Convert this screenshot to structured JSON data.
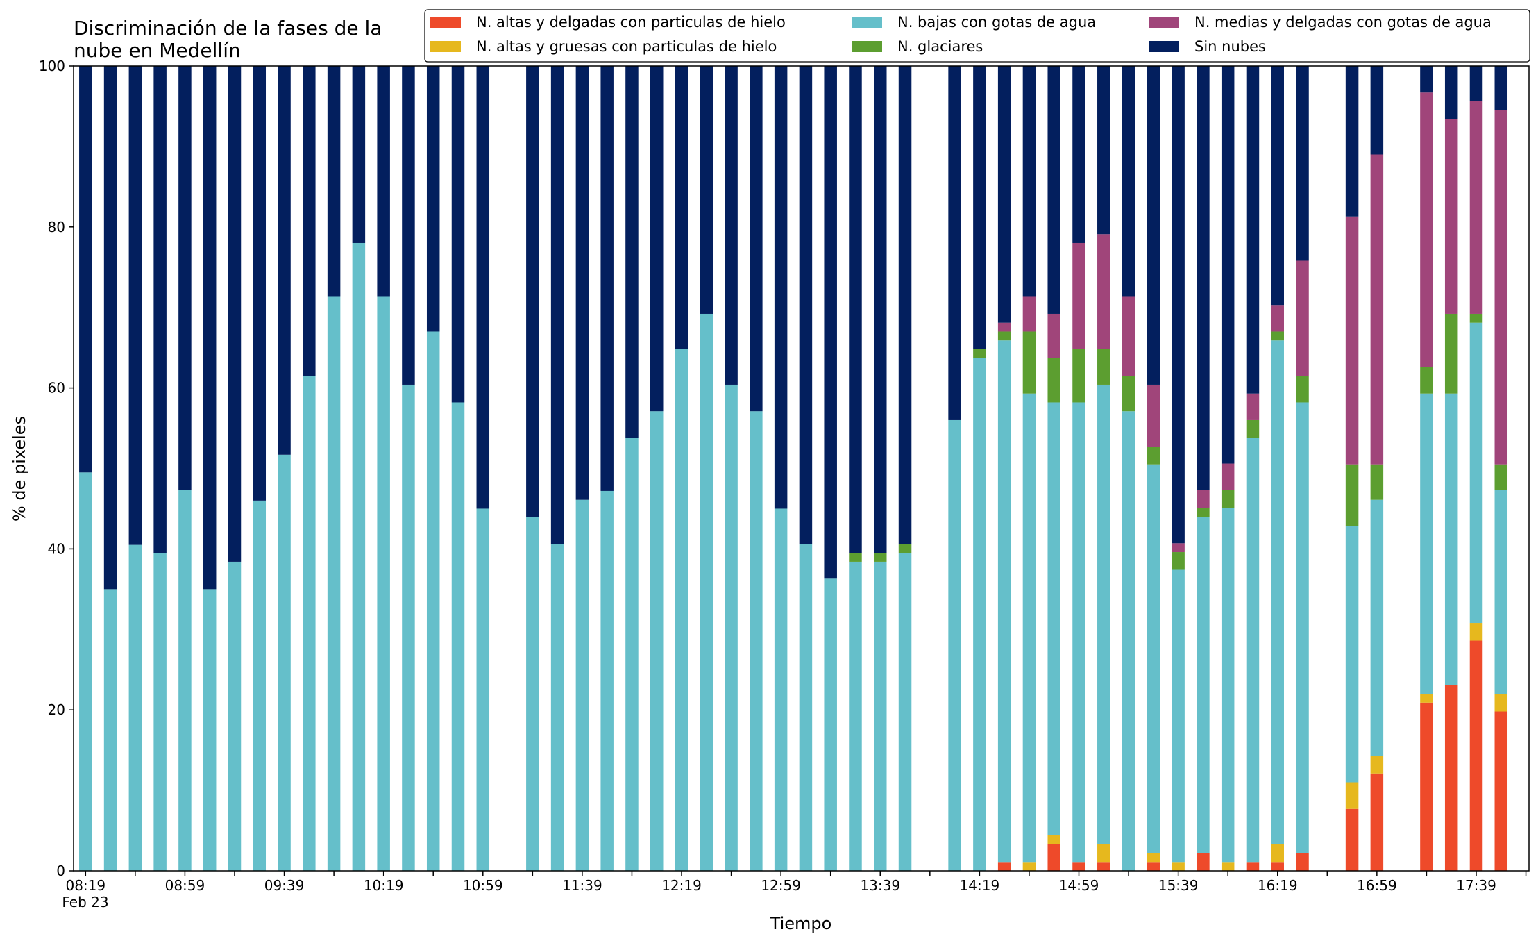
{
  "chart_data": {
    "type": "stacked_bar",
    "title": "Discriminación de la fases de la\nnube en Medellín",
    "x_label": "Tiempo",
    "x_date_label": "Feb 23",
    "y_label": "% de pixeles",
    "ylim": [
      0,
      100
    ],
    "yticks": [
      0,
      20,
      40,
      60,
      80,
      100
    ],
    "categories": [
      "08:19",
      null,
      null,
      null,
      "08:59",
      null,
      null,
      null,
      "09:39",
      null,
      null,
      null,
      "10:19",
      null,
      null,
      null,
      "10:59",
      null,
      null,
      null,
      "11:39",
      null,
      null,
      null,
      "12:19",
      null,
      null,
      null,
      "12:59",
      null,
      null,
      null,
      "13:39",
      null,
      null,
      null,
      "14:19",
      null,
      null,
      null,
      "14:59",
      null,
      null,
      null,
      "15:39",
      null,
      null,
      null,
      "16:19",
      null,
      null,
      null,
      "16:59",
      null,
      null,
      null,
      "17:39",
      null,
      null
    ],
    "legend": "upper right",
    "series": [
      {
        "name": "N. altas y delgadas con particulas de hielo",
        "color": "#ee4a2a",
        "values": [
          0,
          0,
          0,
          0,
          0,
          0,
          0,
          0,
          0,
          0,
          0,
          0,
          0,
          0,
          0,
          0,
          0,
          null,
          0,
          0,
          0,
          0,
          0,
          0,
          0,
          0,
          0,
          0,
          0,
          0,
          0,
          0,
          0,
          0,
          null,
          0,
          0,
          1.1,
          0,
          3.3,
          1.1,
          1.1,
          0,
          1.1,
          0,
          2.2,
          0,
          1.1,
          1.1,
          2.2,
          null,
          7.7,
          12.1,
          null,
          20.9,
          23.1,
          28.6,
          19.8,
          null
        ]
      },
      {
        "name": "N. altas y gruesas con particulas de hielo",
        "color": "#e6b81e",
        "values": [
          0,
          0,
          0,
          0,
          0,
          0,
          0,
          0,
          0,
          0,
          0,
          0,
          0,
          0,
          0,
          0,
          0,
          null,
          0,
          0,
          0,
          0,
          0,
          0,
          0,
          0,
          0,
          0,
          0,
          0,
          0,
          0,
          0,
          0,
          null,
          0,
          0,
          0,
          1.1,
          1.1,
          0,
          2.2,
          0,
          1.1,
          1.1,
          0,
          1.1,
          0,
          2.2,
          0,
          null,
          3.3,
          2.2,
          null,
          1.1,
          0,
          2.2,
          2.2,
          null
        ]
      },
      {
        "name": "N. bajas con gotas de agua",
        "color": "#65bfca",
        "values": [
          49.5,
          35,
          40.5,
          39.5,
          47.3,
          35,
          38.4,
          46,
          51.7,
          61.5,
          71.4,
          78,
          71.4,
          60.4,
          67,
          58.2,
          45,
          null,
          44,
          40.6,
          46.1,
          47.2,
          53.8,
          57.1,
          64.8,
          69.2,
          60.4,
          57.1,
          45,
          40.6,
          36.3,
          38.4,
          38.4,
          39.5,
          null,
          56,
          63.7,
          64.8,
          58.2,
          53.8,
          57.1,
          57.1,
          57.1,
          48.3,
          36.3,
          41.8,
          44,
          52.7,
          62.6,
          56,
          null,
          31.8,
          31.8,
          null,
          37.3,
          36.2,
          37.3,
          25.3,
          null
        ]
      },
      {
        "name": "N. glaciares",
        "color": "#5c9e30",
        "values": [
          0,
          0,
          0,
          0,
          0,
          0,
          0,
          0,
          0,
          0,
          0,
          0,
          0,
          0,
          0,
          0,
          0,
          null,
          0,
          0,
          0,
          0,
          0,
          0,
          0,
          0,
          0,
          0,
          0,
          0,
          0,
          1.1,
          1.1,
          1.1,
          null,
          0,
          1.1,
          1.1,
          7.7,
          5.5,
          6.6,
          4.4,
          4.4,
          2.2,
          2.2,
          1.1,
          2.2,
          2.2,
          1.1,
          3.3,
          null,
          7.7,
          4.4,
          null,
          3.3,
          9.9,
          1.1,
          3.2,
          null
        ]
      },
      {
        "name": "N. medias y delgadas con gotas de agua",
        "color": "#a0457a",
        "values": [
          0,
          0,
          0,
          0,
          0,
          0,
          0,
          0,
          0,
          0,
          0,
          0,
          0,
          0,
          0,
          0,
          0,
          null,
          0,
          0,
          0,
          0,
          0,
          0,
          0,
          0,
          0,
          0,
          0,
          0,
          0,
          0,
          0,
          0,
          null,
          0,
          0,
          1.1,
          4.4,
          5.5,
          13.2,
          14.3,
          9.9,
          7.7,
          1.1,
          2.2,
          3.3,
          3.3,
          3.3,
          14.3,
          null,
          30.8,
          38.5,
          null,
          34.1,
          24.2,
          26.4,
          44,
          null
        ]
      },
      {
        "name": "Sin nubes",
        "color": "#031f5e",
        "values": [
          50.5,
          65,
          59.5,
          60.5,
          52.7,
          65,
          61.6,
          54,
          48.3,
          38.5,
          28.6,
          22,
          28.6,
          39.6,
          33,
          41.8,
          55,
          null,
          56,
          59.4,
          53.9,
          52.8,
          46.2,
          42.9,
          35.2,
          30.8,
          39.6,
          42.9,
          55,
          59.4,
          63.7,
          60.5,
          60.5,
          59.4,
          null,
          44,
          35.2,
          31.9,
          28.6,
          30.8,
          22,
          20.9,
          28.6,
          39.6,
          59.3,
          52.7,
          49.4,
          40.7,
          29.7,
          24.2,
          null,
          18.7,
          11,
          null,
          3.3,
          6.6,
          4.4,
          5.5,
          null
        ]
      }
    ]
  }
}
